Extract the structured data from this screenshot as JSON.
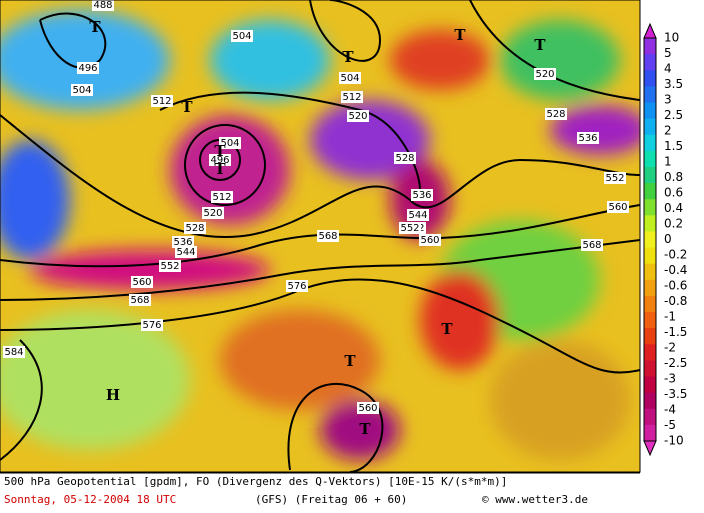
{
  "map": {
    "contour_labels": [
      "488",
      "496",
      "504",
      "504",
      "504",
      "512",
      "512",
      "520",
      "520",
      "520",
      "528",
      "528",
      "528",
      "536",
      "536",
      "536",
      "544",
      "544",
      "552",
      "552",
      "552",
      "552",
      "560",
      "560",
      "560",
      "560",
      "568",
      "568",
      "568",
      "576",
      "576",
      "584",
      "496",
      "504",
      "512"
    ],
    "pressure_markers": [
      "T",
      "T",
      "T",
      "T",
      "T",
      "T",
      "T",
      "T",
      "T",
      "T",
      "H"
    ],
    "legend": [
      "10",
      "5",
      "4",
      "3.5",
      "3",
      "2.5",
      "2",
      "1.5",
      "1",
      "0.8",
      "0.6",
      "0.4",
      "0.2",
      "0",
      "-0.2",
      "-0.4",
      "-0.6",
      "-0.8",
      "-1",
      "-1.5",
      "-2",
      "-2.5",
      "-3",
      "-3.5",
      "-4",
      "-5",
      "-10"
    ],
    "legend_colors": [
      "#d020d0",
      "#9030e0",
      "#6040f0",
      "#3050f0",
      "#2070f0",
      "#1090f0",
      "#10b0f0",
      "#10d0e0",
      "#10e0b0",
      "#20d080",
      "#40d040",
      "#80e030",
      "#c0f020",
      "#f0f020",
      "#f0e010",
      "#f0c010",
      "#f0a010",
      "#f08010",
      "#f06010",
      "#e84010",
      "#e02020",
      "#d01030",
      "#c00040",
      "#b00060",
      "#c01080",
      "#d020a0",
      "#e030c0"
    ]
  },
  "footer": {
    "line1": "500 hPa Geopotential [gpdm], FO (Divergenz des Q-Vektors) [10E-15 K/(s*m*m)]",
    "date": "Sonntag, 05-12-2004  18 UTC",
    "model": "(GFS)  (Freitag 06 + 60)",
    "credit": "© www.wetter3.de"
  }
}
